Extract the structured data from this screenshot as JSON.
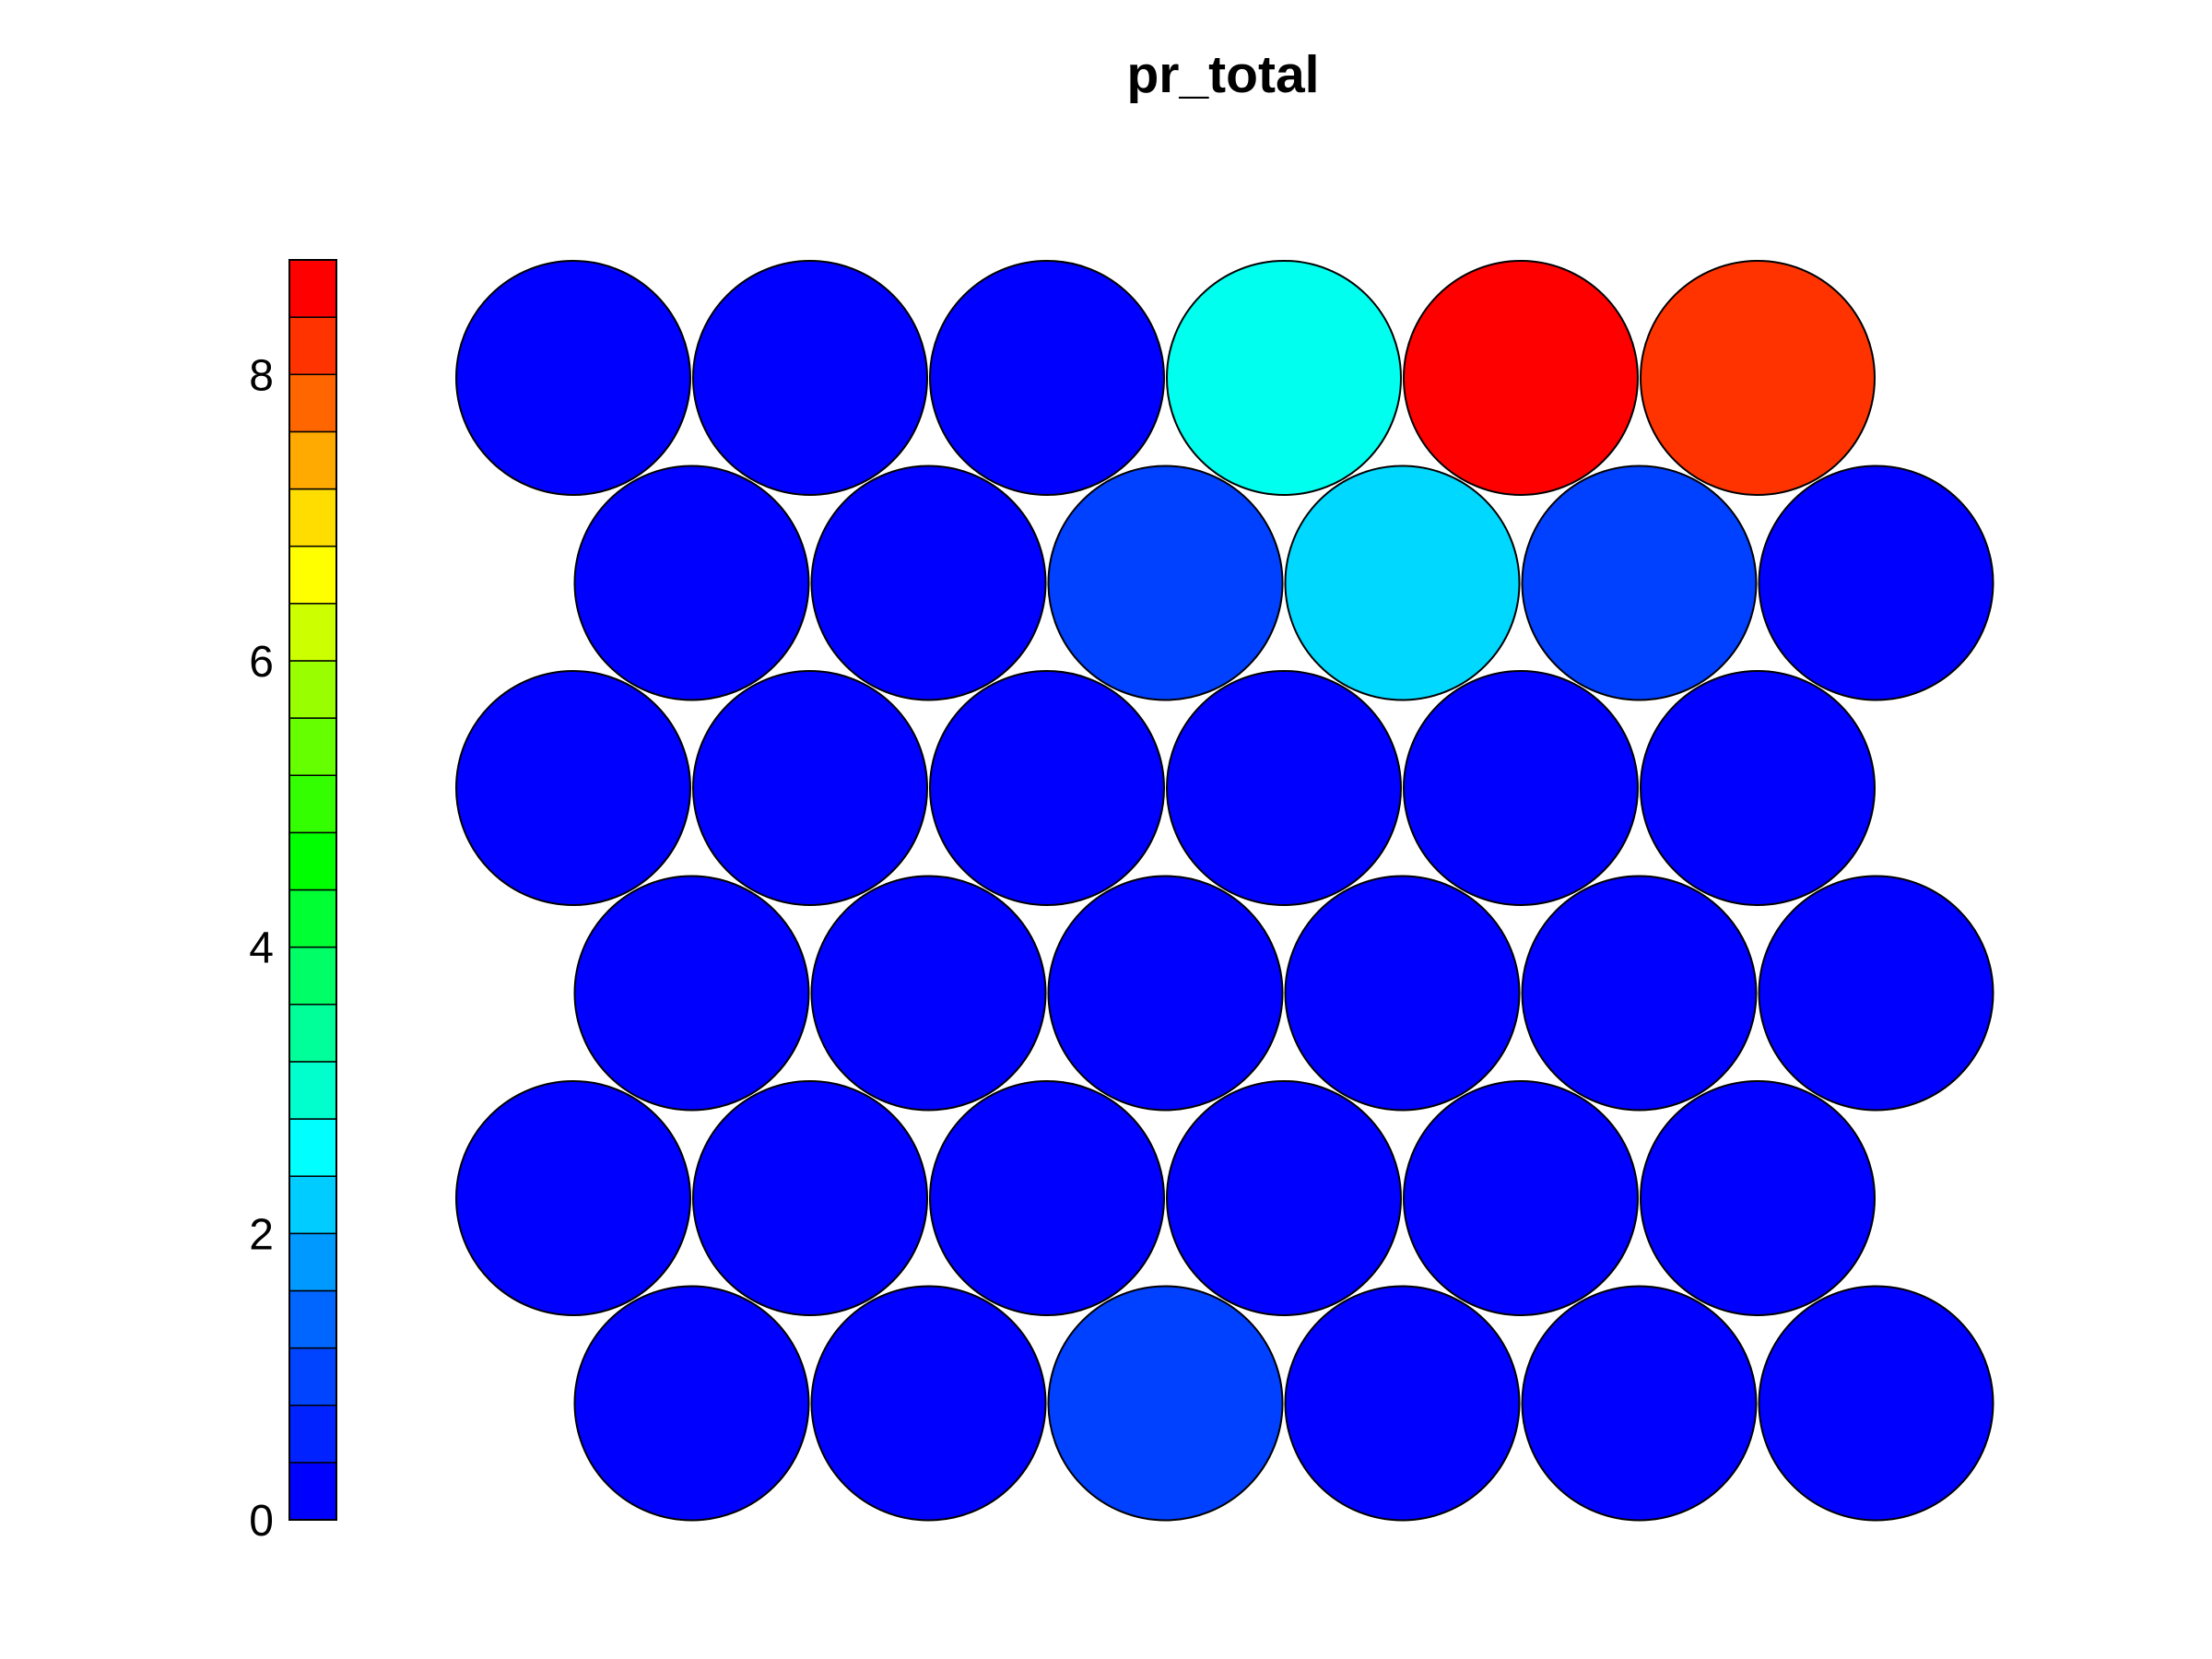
{
  "chart_data": {
    "type": "heatmap",
    "subtype": "som-hexagonal-node-map",
    "title": "pr_total",
    "grid": false,
    "legend": "colorbar-left",
    "grid_rows": 6,
    "grid_cols": 6,
    "colorbar": {
      "min": 0,
      "max": 8.8,
      "ticks": [
        0,
        2,
        4,
        6,
        8
      ],
      "tick_labels": [
        "0",
        "2",
        "4",
        "6",
        "8"
      ],
      "colors": [
        "#0000FF",
        "#0022FF",
        "#0044FF",
        "#0066FF",
        "#0099FF",
        "#00CCFF",
        "#00FFFF",
        "#00FFCC",
        "#00FF99",
        "#00FF66",
        "#00FF33",
        "#00FF00",
        "#33FF00",
        "#66FF00",
        "#99FF00",
        "#CCFF00",
        "#FFFF00",
        "#FFDD00",
        "#FFAA00",
        "#FF6600",
        "#FF3300",
        "#FF0000"
      ]
    },
    "rows": [
      {
        "values": [
          0,
          0,
          0,
          2.4,
          8.8,
          8.2
        ]
      },
      {
        "values": [
          0,
          0,
          0.5,
          2.0,
          0.5,
          0
        ]
      },
      {
        "values": [
          0,
          0,
          0,
          0,
          0,
          0
        ]
      },
      {
        "values": [
          0,
          0,
          0,
          0,
          0,
          0
        ]
      },
      {
        "values": [
          0,
          0,
          0,
          0,
          0,
          0
        ]
      },
      {
        "values": [
          0,
          0,
          0.5,
          0,
          0,
          0
        ]
      }
    ],
    "node_colors": [
      [
        "#0000FF",
        "#0000FF",
        "#0000FF",
        "#00FFEE",
        "#FF0000",
        "#FF3300"
      ],
      [
        "#0000FF",
        "#0000FF",
        "#0040FF",
        "#00D8FF",
        "#0040FF",
        "#0000FF"
      ],
      [
        "#0000FF",
        "#0000FF",
        "#0000FF",
        "#0000FF",
        "#0000FF",
        "#0000FF"
      ],
      [
        "#0000FF",
        "#0000FF",
        "#0000FF",
        "#0000FF",
        "#0000FF",
        "#0000FF"
      ],
      [
        "#0000FF",
        "#0000FF",
        "#0000FF",
        "#0000FF",
        "#0000FF",
        "#0000FF"
      ],
      [
        "#0000FF",
        "#0000FF",
        "#0040FF",
        "#0000FF",
        "#0000FF",
        "#0000FF"
      ]
    ]
  }
}
